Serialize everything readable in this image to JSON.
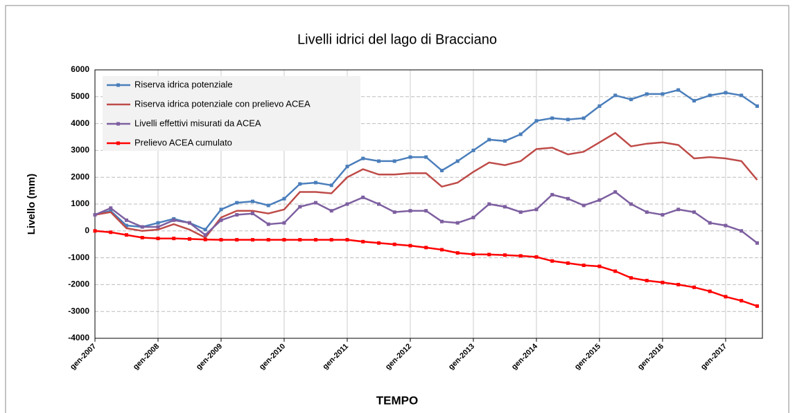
{
  "chart_data": {
    "type": "line",
    "title": "Livelli idrici del lago di Bracciano",
    "x_label": "TEMPO",
    "y_label": "Livello (mm)",
    "x": [
      "2007-01",
      "2007-04",
      "2007-07",
      "2007-10",
      "2008-01",
      "2008-04",
      "2008-07",
      "2008-10",
      "2009-01",
      "2009-04",
      "2009-07",
      "2009-10",
      "2010-01",
      "2010-04",
      "2010-07",
      "2010-10",
      "2011-01",
      "2011-04",
      "2011-07",
      "2011-10",
      "2012-01",
      "2012-04",
      "2012-07",
      "2012-10",
      "2013-01",
      "2013-04",
      "2013-07",
      "2013-10",
      "2014-01",
      "2014-04",
      "2014-07",
      "2014-10",
      "2015-01",
      "2015-04",
      "2015-07",
      "2015-10",
      "2016-01",
      "2016-04",
      "2016-07",
      "2016-10",
      "2017-01",
      "2017-04",
      "2017-07"
    ],
    "xlim": [
      "2007-01",
      "2017-08"
    ],
    "xticks": [
      {
        "value": "2007-01",
        "label": "gen-2007"
      },
      {
        "value": "2008-01",
        "label": "gen-2008"
      },
      {
        "value": "2009-01",
        "label": "gen-2009"
      },
      {
        "value": "2010-01",
        "label": "gen-2010"
      },
      {
        "value": "2011-01",
        "label": "gen-2011"
      },
      {
        "value": "2012-01",
        "label": "gen-2012"
      },
      {
        "value": "2013-01",
        "label": "gen-2013"
      },
      {
        "value": "2014-01",
        "label": "gen-2014"
      },
      {
        "value": "2015-01",
        "label": "gen-2015"
      },
      {
        "value": "2016-01",
        "label": "gen-2016"
      },
      {
        "value": "2017-01",
        "label": "gen-2017"
      }
    ],
    "ylim": [
      -4000,
      6000
    ],
    "yticks": [
      -4000,
      -3000,
      -2000,
      -1000,
      0,
      1000,
      2000,
      3000,
      4000,
      5000,
      6000
    ],
    "grid": true,
    "legend": "upper left",
    "series": [
      {
        "name": "Riserva idrica potenziale",
        "color": "#4a7ebb",
        "marker": true,
        "values": [
          600,
          750,
          200,
          150,
          300,
          450,
          300,
          50,
          800,
          1050,
          1100,
          950,
          1200,
          1750,
          1800,
          1700,
          2400,
          2700,
          2600,
          2600,
          2750,
          2750,
          2250,
          2600,
          3000,
          3400,
          3350,
          3600,
          4100,
          4200,
          4150,
          4200,
          4650,
          5050,
          4900,
          5100,
          5100,
          5250,
          4850,
          5050,
          5150,
          5050,
          4650
        ]
      },
      {
        "name": "Riserva idrica potenziale con prelievo ACEA",
        "color": "#be4b48",
        "marker": false,
        "values": [
          600,
          700,
          100,
          0,
          50,
          250,
          50,
          -250,
          500,
          750,
          750,
          650,
          800,
          1450,
          1450,
          1400,
          2000,
          2300,
          2100,
          2100,
          2150,
          2150,
          1650,
          1800,
          2200,
          2550,
          2450,
          2600,
          3050,
          3100,
          2850,
          2950,
          3300,
          3650,
          3150,
          3250,
          3300,
          3200,
          2700,
          2750,
          2700,
          2600,
          1900
        ]
      },
      {
        "name": "Livelli effettivi misurati da ACEA",
        "color": "#7d5fa0",
        "marker": true,
        "values": [
          600,
          850,
          400,
          150,
          150,
          400,
          300,
          -150,
          400,
          600,
          650,
          250,
          300,
          900,
          1050,
          750,
          1000,
          1250,
          1000,
          700,
          750,
          750,
          350,
          300,
          500,
          1000,
          900,
          700,
          800,
          1350,
          1200,
          950,
          1150,
          1450,
          1000,
          700,
          600,
          800,
          700,
          300,
          200,
          0,
          -450
        ]
      },
      {
        "name": "Prelievo ACEA cumulato",
        "color": "#ff0000",
        "marker": true,
        "values": [
          0,
          -50,
          -150,
          -250,
          -280,
          -280,
          -300,
          -320,
          -330,
          -330,
          -330,
          -330,
          -330,
          -330,
          -330,
          -330,
          -330,
          -400,
          -450,
          -500,
          -550,
          -620,
          -700,
          -820,
          -870,
          -880,
          -900,
          -930,
          -970,
          -1120,
          -1200,
          -1280,
          -1320,
          -1500,
          -1750,
          -1850,
          -1920,
          -2000,
          -2100,
          -2250,
          -2450,
          -2600,
          -2800
        ]
      }
    ]
  }
}
